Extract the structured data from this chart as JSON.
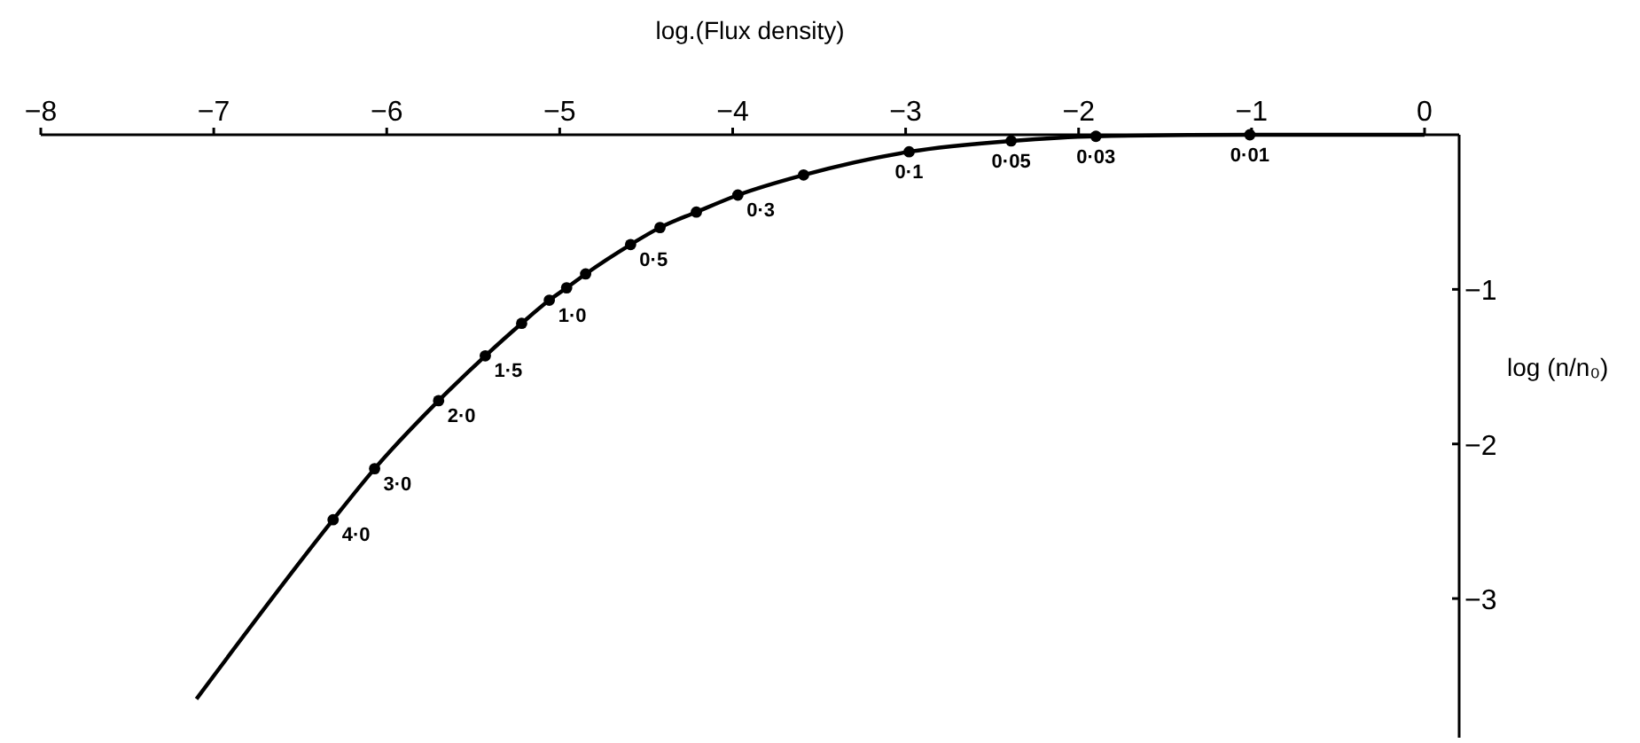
{
  "chart_data": {
    "type": "line",
    "xlabel": "log.(Flux density)",
    "ylabel": "log (n/n₀)",
    "xlim": [
      -8,
      0.2
    ],
    "ylim": [
      -3.9,
      0
    ],
    "xticks": [
      -8,
      -7,
      -6,
      -5,
      -4,
      -3,
      -2,
      -1,
      0
    ],
    "yticks": [
      -1,
      -2,
      -3
    ],
    "grid": false,
    "series": [
      {
        "color": "#000000",
        "marker": "none",
        "x": [
          -7.1,
          -6.31,
          -6.07,
          -5.7,
          -5.43,
          -5.22,
          -5.06,
          -4.96,
          -4.85,
          -4.59,
          -4.42,
          -4.21,
          -3.97,
          -3.59,
          -2.98,
          -2.39,
          -1.9,
          -1.01,
          0
        ],
        "values": [
          -3.65,
          -2.49,
          -2.16,
          -1.72,
          -1.43,
          -1.22,
          -1.07,
          -0.99,
          -0.9,
          -0.71,
          -0.6,
          -0.5,
          -0.39,
          -0.26,
          -0.11,
          -0.04,
          -0.01,
          0,
          0
        ]
      },
      {
        "type": "scatter",
        "color": "#000000",
        "marker": "circle",
        "x": [
          -6.31,
          -6.07,
          -5.7,
          -5.43,
          -5.22,
          -5.06,
          -4.96,
          -4.85,
          -4.59,
          -4.42,
          -4.21,
          -3.97,
          -3.59,
          -2.98,
          -2.39,
          -1.9,
          -1.01
        ],
        "values": [
          -2.49,
          -2.16,
          -1.72,
          -1.43,
          -1.22,
          -1.07,
          -0.99,
          -0.9,
          -0.71,
          -0.6,
          -0.5,
          -0.39,
          -0.26,
          -0.11,
          -0.04,
          -0.01,
          0
        ]
      }
    ],
    "annotations": [
      {
        "text": "4·0",
        "x": -6.31,
        "y": -2.49
      },
      {
        "text": "3·0",
        "x": -6.07,
        "y": -2.16
      },
      {
        "text": "2·0",
        "x": -5.7,
        "y": -1.72
      },
      {
        "text": "1·5",
        "x": -5.43,
        "y": -1.43
      },
      {
        "text": "1·0",
        "x": -5.06,
        "y": -1.07
      },
      {
        "text": "0·5",
        "x": -4.59,
        "y": -0.71
      },
      {
        "text": "0·3",
        "x": -3.97,
        "y": -0.39
      },
      {
        "text": "0·1",
        "x": -2.98,
        "y": -0.11
      },
      {
        "text": "0·05",
        "x": -2.39,
        "y": -0.04
      },
      {
        "text": "0·03",
        "x": -1.9,
        "y": -0.01
      },
      {
        "text": "0·01",
        "x": -1.01,
        "y": 0
      }
    ]
  }
}
